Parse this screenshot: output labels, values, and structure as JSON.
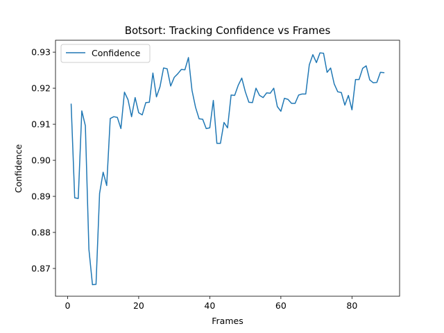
{
  "chart_data": {
    "type": "line",
    "title": "Botsort: Tracking Confidence vs Frames",
    "xlabel": "Frames",
    "ylabel": "Confidence",
    "xlim": [
      -3.4,
      93.4
    ],
    "ylim": [
      0.8623,
      0.9333
    ],
    "xticks": [
      0,
      20,
      40,
      60,
      80
    ],
    "yticks": [
      0.87,
      0.88,
      0.89,
      0.9,
      0.91,
      0.92,
      0.93
    ],
    "ytick_labels": [
      "0.87",
      "0.88",
      "0.89",
      "0.90",
      "0.91",
      "0.92",
      "0.93"
    ],
    "grid": false,
    "legend_position": "top-left",
    "series": [
      {
        "name": "Confidence",
        "color": "#1f77b4",
        "x": [
          1,
          2,
          3,
          4,
          5,
          6,
          7,
          8,
          9,
          10,
          11,
          12,
          13,
          14,
          15,
          16,
          17,
          18,
          19,
          20,
          21,
          22,
          23,
          24,
          25,
          26,
          27,
          28,
          29,
          30,
          31,
          32,
          33,
          34,
          35,
          36,
          37,
          38,
          39,
          40,
          41,
          42,
          43,
          44,
          45,
          46,
          47,
          48,
          49,
          50,
          51,
          52,
          53,
          54,
          55,
          56,
          57,
          58,
          59,
          60,
          61,
          62,
          63,
          64,
          65,
          66,
          67,
          68,
          69,
          70,
          71,
          72,
          73,
          74,
          75,
          76,
          77,
          78,
          79,
          80,
          81,
          82,
          83,
          84,
          85,
          86,
          87,
          88,
          89
        ],
        "values": [
          0.9156,
          0.8896,
          0.8894,
          0.9137,
          0.9096,
          0.8753,
          0.8655,
          0.8656,
          0.8908,
          0.8967,
          0.893,
          0.9116,
          0.9121,
          0.9119,
          0.9088,
          0.9189,
          0.9168,
          0.9121,
          0.9174,
          0.9132,
          0.9126,
          0.916,
          0.9161,
          0.9242,
          0.9176,
          0.9204,
          0.9256,
          0.9254,
          0.9206,
          0.923,
          0.924,
          0.9252,
          0.9251,
          0.9285,
          0.9194,
          0.9147,
          0.9115,
          0.9114,
          0.9088,
          0.909,
          0.9166,
          0.9047,
          0.9047,
          0.9105,
          0.909,
          0.9181,
          0.918,
          0.9208,
          0.9228,
          0.919,
          0.9161,
          0.916,
          0.92,
          0.918,
          0.9174,
          0.9187,
          0.9186,
          0.92,
          0.9149,
          0.9136,
          0.9172,
          0.9169,
          0.9158,
          0.9158,
          0.9181,
          0.9184,
          0.9184,
          0.9265,
          0.9293,
          0.9271,
          0.9298,
          0.9297,
          0.9244,
          0.9256,
          0.9212,
          0.919,
          0.9188,
          0.9153,
          0.918,
          0.914,
          0.9224,
          0.9224,
          0.9255,
          0.9262,
          0.9223,
          0.9215,
          0.9216,
          0.9244,
          0.9243
        ]
      }
    ]
  }
}
